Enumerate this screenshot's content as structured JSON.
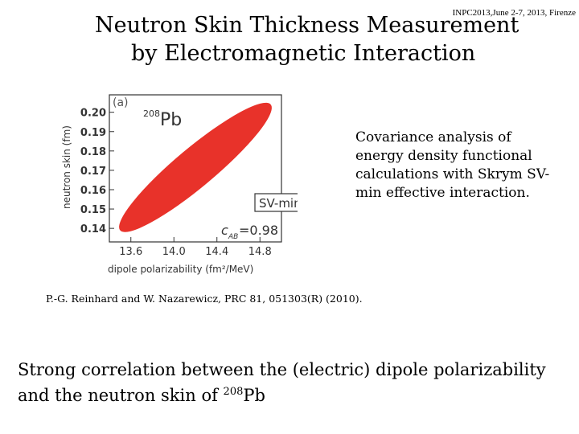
{
  "header_tag": "INPC2013,June 2-7, 2013, Firenze",
  "title": {
    "line1": "Neutron Skin Thickness Measurement",
    "line2": "by Electromagnetic Interaction"
  },
  "side_text": "Covariance analysis of energy density functional calculations with Skrym SV-min effective interaction.",
  "citation": "P.-G. Reinhard and W. Nazarewicz, PRC 81, 051303(R) (2010).",
  "bottom": {
    "text": "Strong correlation between the (electric) dipole polarizability and the neutron skin of ",
    "sup": "208",
    "tail": "Pb"
  },
  "chart_data": {
    "type": "scatter",
    "panel_label": "(a)",
    "nucleus_mass": "208",
    "nucleus_symbol": "Pb",
    "xlabel": "dipole polarizability (fm²/MeV)",
    "ylabel": "neutron skin (fm)",
    "xlim": [
      13.4,
      15.0
    ],
    "ylim": [
      0.133,
      0.209
    ],
    "xticks": [
      "13.6",
      "14.0",
      "14.4",
      "14.8"
    ],
    "yticks": [
      "0.20",
      "0.19",
      "0.18",
      "0.17",
      "0.16",
      "0.15",
      "0.14"
    ],
    "model_label": "SV-min",
    "correlation_label": "c",
    "correlation_subscript": "AB",
    "correlation_value": "=0.98",
    "ellipse": {
      "center": [
        14.2,
        0.17
      ],
      "x_range": [
        13.5,
        14.9
      ],
      "y_range": [
        0.139,
        0.204
      ],
      "correlation": 0.98,
      "color": "#e8322a"
    }
  }
}
